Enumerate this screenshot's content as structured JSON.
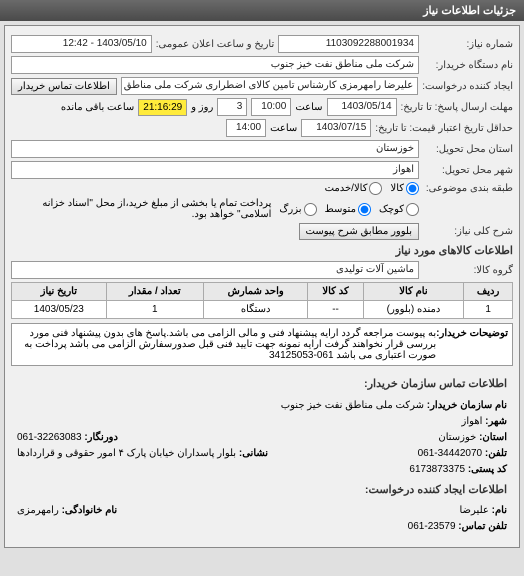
{
  "header": {
    "title": "جزئیات اطلاعات نیاز"
  },
  "fields": {
    "request_number_label": "شماره نیاز:",
    "request_number": "1103092288001934",
    "datetime_label": "تاریخ و ساعت اعلان عمومی:",
    "datetime": "1403/05/10 - 12:42",
    "buyer_label": "نام دستگاه خریدار:",
    "buyer": "شرکت ملی مناطق نفت خیز جنوب",
    "creator_label": "ایجاد کننده درخواست:",
    "creator": "علیرضا رامهرمزی کارشناس تامین کالای اضطراری شرکت ملی مناطق نفت خیز",
    "contact_btn": "اطلاعات تماس خریدار",
    "deadline_label": "مهلت ارسال پاسخ: تا تاریخ:",
    "deadline_date": "1403/05/14",
    "deadline_time_label": "ساعت",
    "deadline_time": "10:00",
    "remain_days_label": "روز و",
    "remain_days": "3",
    "remain_time": "21:16:29",
    "remain_suffix": "ساعت باقی مانده",
    "validity_label": "حداقل تاریخ اعتبار قیمت: تا تاریخ:",
    "validity_date": "1403/07/15",
    "validity_time_label": "ساعت",
    "validity_time": "14:00",
    "province_label": "استان محل تحویل:",
    "province": "خوزستان",
    "city_label": "شهر محل تحویل:",
    "city": "اهواز",
    "budget_label": "طبقه بندی موضوعی:",
    "budget_opts": [
      "کالا",
      "کالا/خدمت"
    ],
    "size_label": "",
    "size_opts": [
      "کوچک",
      "متوسط",
      "بزرگ"
    ],
    "payment_note": "پرداخت تمام یا بخشی از مبلغ خرید،از محل \"اسناد خزانه اسلامی\" خواهد بود.",
    "need_title_label": "شرح کلی نیاز:",
    "need_title_btn": "بلوور مطابق شرح پیوست",
    "goods_section": "اطلاعات کالاهای مورد نیاز",
    "group_label": "گروه کالا:",
    "group": "ماشین آلات تولیدی"
  },
  "table": {
    "headers": [
      "ردیف",
      "نام کالا",
      "کد کالا",
      "واحد شمارش",
      "تعداد / مقدار",
      "تاریخ نیاز"
    ],
    "row": [
      "1",
      "دمنده (بلوور)",
      "--",
      "دستگاه",
      "1",
      "1403/05/23"
    ]
  },
  "notes": {
    "label": "توضیحات خریدار:",
    "text": "به پیوست مراجعه گردد ارایه پیشنهاد فنی و مالی الزامی می باشد.پاسخ های بدون پیشنهاد فنی مورد بررسی قرار نخواهند گرفت ارایه نمونه جهت تایید فنی قبل صدورسفارش الزامی می باشد پرداخت به صورت اعتباری می باشد 061-34125053"
  },
  "contact": {
    "section_title": "اطلاعات تماس سازمان خریدار:",
    "org_label": "نام سازمان خریدار:",
    "org": "شرکت ملی مناطق نفت خیز جنوب",
    "city_label": "شهر:",
    "city": "اهواز",
    "province_label": "استان:",
    "province": "خوزستان",
    "fax_label": "دورنگار:",
    "fax": "32263083-061",
    "phone_label": "تلفن:",
    "phone": "34442070-061",
    "address_label": "نشانی:",
    "address": "بلوار پاسداران خیابان پارک ۴ امور حقوقی و قراردادها",
    "postal_label": "کد پستی:",
    "postal": "6173873375",
    "creator_section": "اطلاعات ایجاد کننده درخواست:",
    "name_label": "نام:",
    "name": "علیرضا",
    "lastname_label": "نام خانوادگی:",
    "lastname": "رامهرمزی",
    "tel_label": "تلفن تماس:",
    "tel": "23579-061"
  }
}
